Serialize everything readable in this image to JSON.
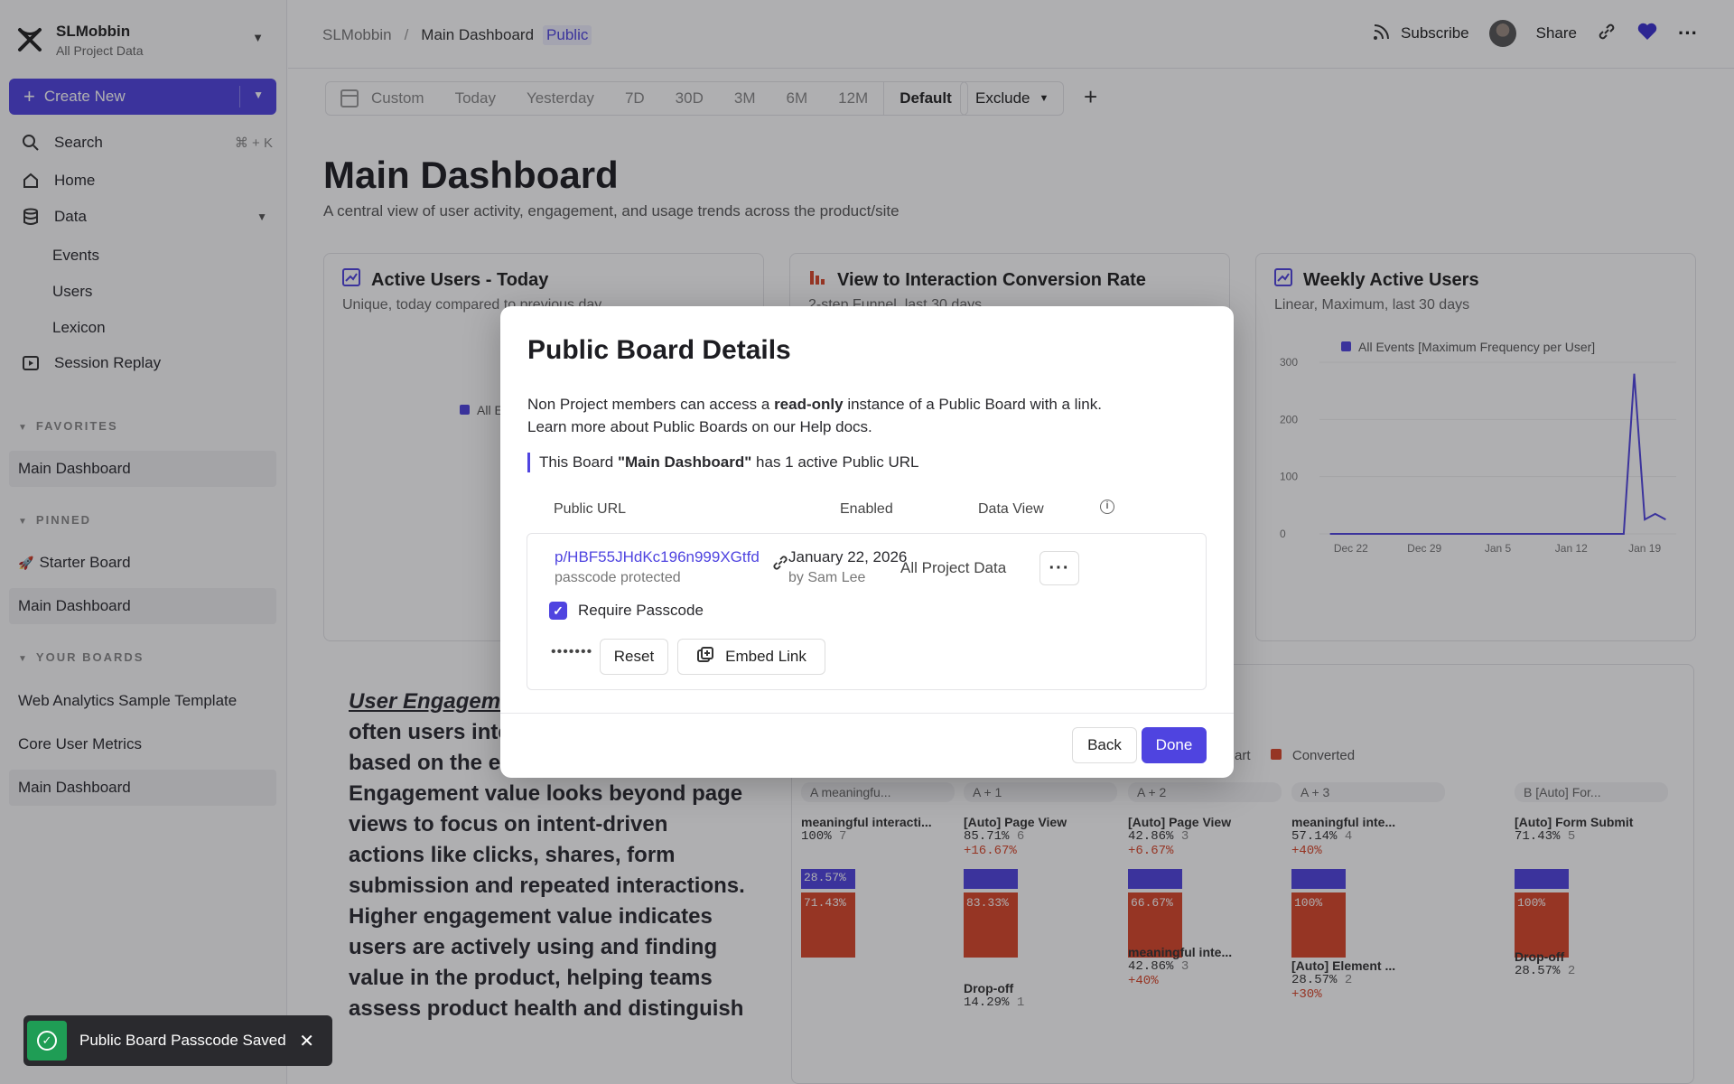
{
  "sidebar": {
    "org_name": "SLMobbin",
    "org_sub": "All Project Data",
    "create_label": "Create New",
    "search_label": "Search",
    "search_shortcut": "⌘ + K",
    "home_label": "Home",
    "data_label": "Data",
    "data_items": [
      "Events",
      "Users",
      "Lexicon"
    ],
    "session_replay_label": "Session Replay",
    "favorites_head": "FAVORITES",
    "favorites": [
      "Main Dashboard"
    ],
    "pinned_head": "PINNED",
    "pinned": [
      "Starter Board",
      "Main Dashboard"
    ],
    "boards_head": "YOUR BOARDS",
    "boards": [
      "Web Analytics Sample Template",
      "Core User Metrics",
      "Main Dashboard"
    ]
  },
  "topbar": {
    "crumb_org": "SLMobbin",
    "crumb_sep": "/",
    "crumb_board": "Main Dashboard",
    "crumb_badge": "Public",
    "subscribe_label": "Subscribe",
    "share_label": "Share"
  },
  "filters": {
    "items": [
      "Custom",
      "Today",
      "Yesterday",
      "7D",
      "30D",
      "3M",
      "6M",
      "12M"
    ],
    "default_label": "Default",
    "exclude_label": "Exclude"
  },
  "page": {
    "title": "Main Dashboard",
    "description": "A central view of user activity, engagement, and usage trends across the product/site"
  },
  "cards": {
    "active_users_title": "Active Users - Today",
    "active_users_sub": "Unique, today compared to previous day",
    "active_users_legend": "All E",
    "conversion_title": "View to Interaction Conversion Rate",
    "conversion_sub": "2-step Funnel, last 30 days",
    "wau_title": "Weekly Active Users",
    "wau_sub": "Linear, Maximum, last 30 days",
    "wau_legend": "All Events [Maximum Frequency per User]"
  },
  "chart_data": {
    "type": "line",
    "title": "Weekly Active Users",
    "x": [
      "Dec 22",
      "Dec 29",
      "Jan 5",
      "Jan 12",
      "Jan 19"
    ],
    "y_ticks": [
      0,
      100,
      200,
      300
    ],
    "ylim": [
      0,
      300
    ],
    "series": [
      {
        "name": "All Events [Maximum Frequency per User]",
        "points": [
          {
            "x": "2025-12-20",
            "y": 0
          },
          {
            "x": "2026-01-17",
            "y": 0
          },
          {
            "x": "2026-01-18",
            "y": 280
          },
          {
            "x": "2026-01-19",
            "y": 25
          },
          {
            "x": "2026-01-20",
            "y": 35
          },
          {
            "x": "2026-01-21",
            "y": 25
          }
        ]
      }
    ],
    "color": "#4f44e0"
  },
  "engagement": {
    "title": "User Engageme",
    "body": "how much and how often users interact with the product based on the events they perform. Engagement value looks beyond page views to focus on intent-driven actions like clicks, shares, form submission and repeated interactions. Higher engagement value indicates users are actively using and finding value in the product, helping teams assess product health and distinguish"
  },
  "funnel": {
    "legend_start": "art",
    "legend_converted": "Converted",
    "steps": [
      {
        "head": "A  meaningfu...",
        "name": "meaningful interacti...",
        "pct": "100%",
        "count": "7",
        "change": "",
        "conv": "28.57%",
        "drop": "71.43%"
      },
      {
        "head": "A + 1",
        "name": "[Auto] Page View",
        "pct": "85.71%",
        "count": "6",
        "change": "+16.67%",
        "conv": "",
        "drop": "83.33%"
      },
      {
        "head": "A + 2",
        "name": "[Auto] Page View",
        "pct": "42.86%",
        "count": "3",
        "change": "+6.67%",
        "conv": "",
        "drop": "66.67%"
      },
      {
        "head": "A + 3",
        "name": "meaningful inte...",
        "pct": "57.14%",
        "count": "4",
        "change": "+40%",
        "conv": "",
        "drop": "100%"
      },
      {
        "head": "B  [Auto] For...",
        "name": "[Auto] Form Submit",
        "pct": "71.43%",
        "count": "5",
        "change": "",
        "conv": "",
        "drop": "100%"
      }
    ],
    "extra": [
      {
        "name": "Drop-off",
        "pct": "14.29%",
        "count": "1"
      },
      {
        "name": "meaningful inte...",
        "pct": "42.86%",
        "count": "3",
        "change": "+40%"
      },
      {
        "name": "[Auto] Element ...",
        "pct": "28.57%",
        "count": "2",
        "change": "+30%"
      },
      {
        "name": "Drop-off",
        "pct": "28.57%",
        "count": "2"
      }
    ],
    "drop_label": "Drop-off",
    "full_label": "100%"
  },
  "modal": {
    "title": "Public Board Details",
    "desc_pre": "Non Project members can access a ",
    "desc_bold": "read-only",
    "desc_post": " instance of a Public Board with a link.",
    "desc_line2": "Learn more about Public Boards on our Help docs.",
    "note_pre": "This Board ",
    "note_bold": "\"Main Dashboard\"",
    "note_post": " has 1 active Public URL",
    "col_url": "Public URL",
    "col_enabled": "Enabled",
    "col_view": "Data View",
    "url": "p/HBF55JHdKc196n999XGtfd",
    "url_sub": "passcode protected",
    "enabled_date": "January 22, 2026",
    "enabled_by": "by Sam Lee",
    "data_view": "All Project Data",
    "require_passcode": "Require Passcode",
    "passcode_mask": "•••••••",
    "reset_label": "Reset",
    "embed_label": "Embed Link",
    "back_label": "Back",
    "done_label": "Done"
  },
  "toast": {
    "message": "Public Board Passcode Saved"
  }
}
